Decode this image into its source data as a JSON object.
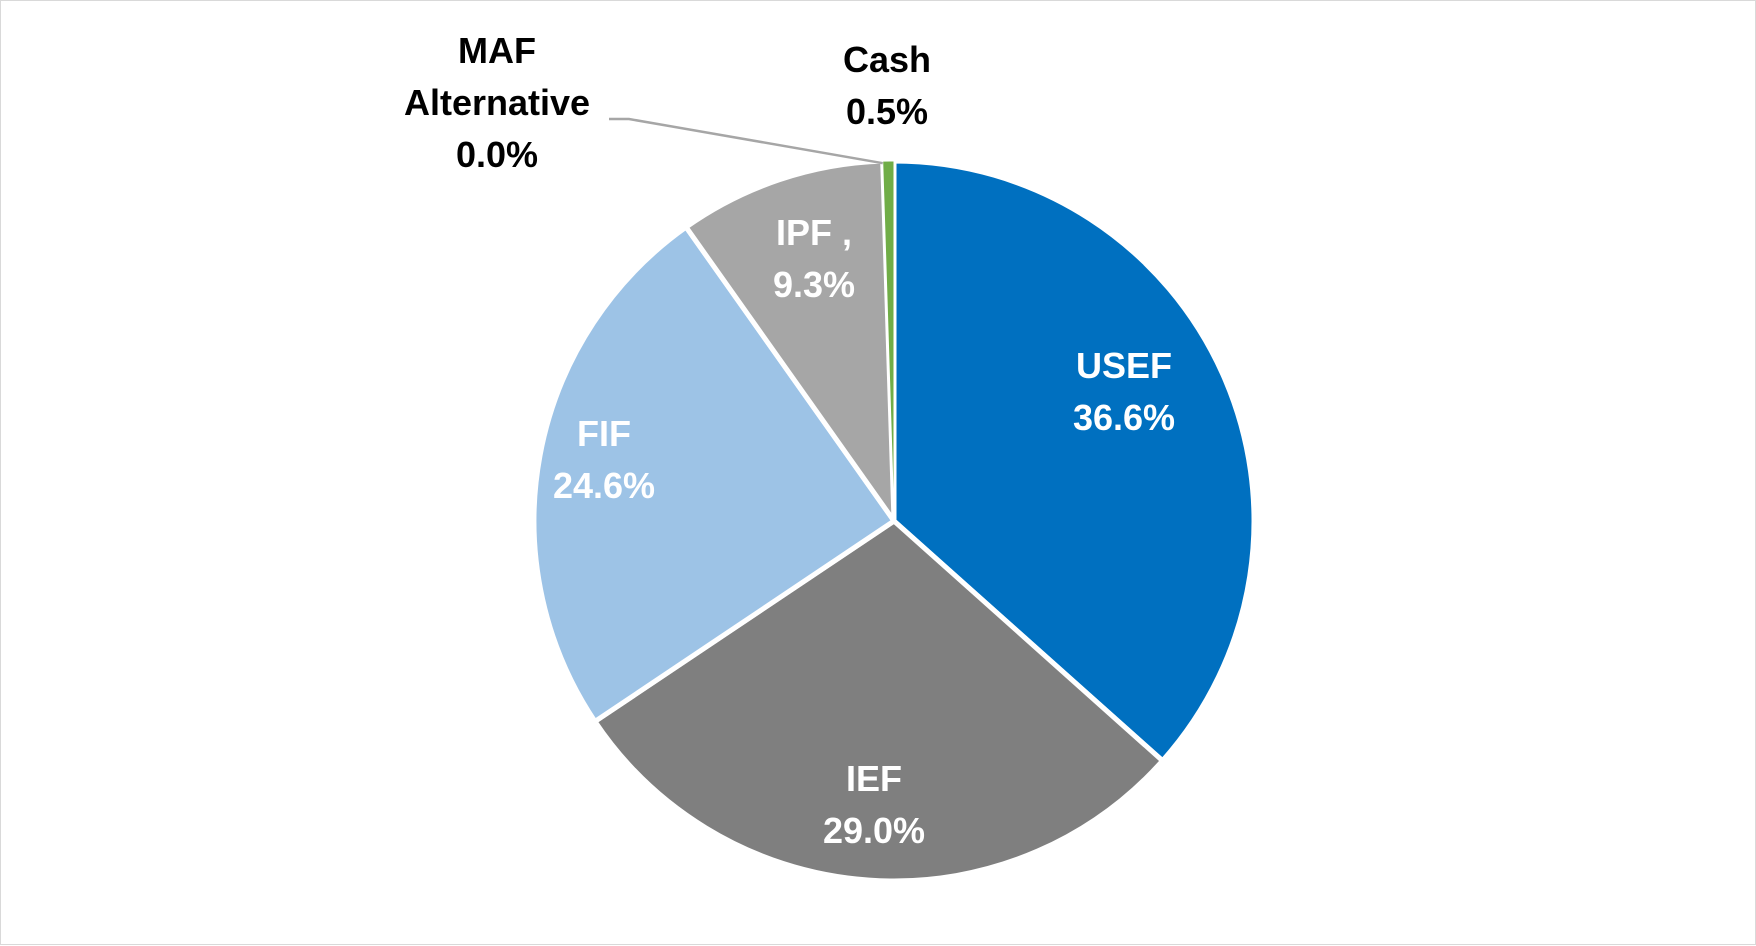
{
  "chart_data": {
    "type": "pie",
    "title": "",
    "slices": [
      {
        "name": "USEF",
        "value": 36.6,
        "value_label": "36.6%",
        "color": "#0070c0",
        "label_color": "#ffffff"
      },
      {
        "name": "IEF",
        "value": 29.0,
        "value_label": "29.0%",
        "color": "#7f7f7f",
        "label_color": "#ffffff"
      },
      {
        "name": "FIF",
        "value": 24.6,
        "value_label": "24.6%",
        "color": "#9dc3e6",
        "label_color": "#ffffff"
      },
      {
        "name": "IPF ,",
        "value": 9.3,
        "value_label": "9.3%",
        "color": "#a6a6a6",
        "label_color": "#ffffff"
      },
      {
        "name": "MAF Alternative",
        "value": 0.0,
        "value_label": "0.0%",
        "color": "#595959",
        "label_color": "#000000"
      },
      {
        "name": "Cash",
        "value": 0.5,
        "value_label": "0.5%",
        "color": "#70ad47",
        "label_color": "#000000"
      }
    ],
    "start_angle_deg": 0,
    "direction": "clockwise",
    "legend": "none"
  }
}
